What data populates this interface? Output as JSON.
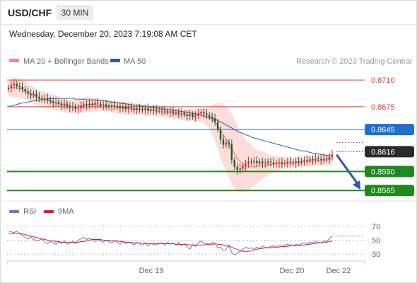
{
  "header": {
    "symbol": "USD/CHF",
    "timeframe": "30 MIN",
    "datetime": "Wednesday, December 20, 2023 7:19:08 AM CET"
  },
  "legend": {
    "items": [
      {
        "label": "MA 20 + Bollinger Bands",
        "color": "#f28b82"
      },
      {
        "label": "MA 50",
        "color": "#2f5b94"
      }
    ],
    "copyright": "Research © 2023 Trading Central"
  },
  "rsi_legend": {
    "items": [
      {
        "label": "RSI",
        "color": "#5b7fd6"
      },
      {
        "label": "9MA",
        "color": "#e02020"
      }
    ]
  },
  "colors": {
    "up": "#c62828",
    "down": "#1b5e20",
    "ma20": "#e57373",
    "band": "#ffd6d6",
    "ma50": "#3d5f91",
    "support": "#1e8a1e",
    "resistance": "#e53935",
    "pivot": "#1f6fd1",
    "current": "#2b2b2b",
    "arrow": "#2a5aa8"
  },
  "chart_data": [
    {
      "type": "candlestick",
      "title": "USD/CHF 30 MIN",
      "ylim": [
        0.8555,
        0.8725
      ],
      "x_ticks": [
        "Dec 19",
        "Dec 20",
        "Dec 22"
      ],
      "series": [
        {
          "name": "USD/CHF",
          "close": [
            0.87,
            0.8703,
            0.8705,
            0.8702,
            0.8701,
            0.8698,
            0.8695,
            0.8692,
            0.869,
            0.8692,
            0.8688,
            0.8686,
            0.8685,
            0.8686,
            0.8684,
            0.8682,
            0.868,
            0.8681,
            0.8679,
            0.8677,
            0.8679,
            0.8676,
            0.8674,
            0.8675,
            0.8672,
            0.8673,
            0.8676,
            0.8678,
            0.8677,
            0.8679,
            0.8678,
            0.868,
            0.8679,
            0.8677,
            0.8678,
            0.8676,
            0.8675,
            0.8677,
            0.8676,
            0.8675,
            0.8673,
            0.8675,
            0.8672,
            0.8674,
            0.8673,
            0.8671,
            0.8673,
            0.8672,
            0.8671,
            0.8673,
            0.867,
            0.8672,
            0.8671,
            0.867,
            0.8671,
            0.867,
            0.8669,
            0.8668,
            0.8669,
            0.8667,
            0.8668,
            0.8666,
            0.8667,
            0.8665,
            0.8663,
            0.8665,
            0.8662,
            0.8664,
            0.8666,
            0.8668,
            0.8666,
            0.8664,
            0.8662,
            0.866,
            0.8655,
            0.8645,
            0.8632,
            0.8625,
            0.8628,
            0.8626,
            0.8605,
            0.8596,
            0.8592,
            0.8594,
            0.8597,
            0.86,
            0.8603,
            0.8602,
            0.8604,
            0.8601,
            0.8603,
            0.86,
            0.8601,
            0.8603,
            0.8602,
            0.86,
            0.8601,
            0.8602,
            0.86,
            0.8601,
            0.8603,
            0.8602,
            0.8601,
            0.8603,
            0.8602,
            0.8604,
            0.8605,
            0.8604,
            0.8606,
            0.8605,
            0.8607,
            0.8606,
            0.8605,
            0.8607,
            0.8606,
            0.8609,
            0.8612
          ]
        },
        {
          "name": "MA 20",
          "values": [
            0.8699,
            0.87,
            0.87,
            0.87,
            0.8699,
            0.8698,
            0.8696,
            0.8694,
            0.8692,
            0.869,
            0.8688,
            0.8686,
            0.8685,
            0.8684,
            0.8683,
            0.8682,
            0.8681,
            0.868,
            0.8679,
            0.8678,
            0.8677,
            0.8676,
            0.8675,
            0.8675,
            0.8675,
            0.8675,
            0.8676,
            0.8677,
            0.8678,
            0.8678,
            0.8678,
            0.8678,
            0.8677,
            0.8677,
            0.8677,
            0.8676,
            0.8676,
            0.8675,
            0.8675,
            0.8674,
            0.8674,
            0.8673,
            0.8673,
            0.8673,
            0.8672,
            0.8672,
            0.8672,
            0.8671,
            0.8671,
            0.8671,
            0.867,
            0.867,
            0.867,
            0.8669,
            0.8669,
            0.8668,
            0.8668,
            0.8667,
            0.8667,
            0.8666,
            0.8666,
            0.8665,
            0.8665,
            0.8664,
            0.8664,
            0.8664,
            0.8664,
            0.8664,
            0.8664,
            0.8664,
            0.8663,
            0.8662,
            0.866,
            0.8658,
            0.8655,
            0.865,
            0.8644,
            0.8638,
            0.8632,
            0.8627,
            0.862,
            0.8613,
            0.8607,
            0.8603,
            0.86,
            0.8598,
            0.8597,
            0.8596,
            0.8596,
            0.8596,
            0.8597,
            0.8598,
            0.8598,
            0.8599,
            0.8599,
            0.86,
            0.86,
            0.8601,
            0.8601,
            0.8601,
            0.8601,
            0.8601,
            0.8601,
            0.8602,
            0.8602,
            0.8602,
            0.8603,
            0.8603,
            0.8603,
            0.8604,
            0.8604,
            0.8604,
            0.8605,
            0.8605,
            0.8605,
            0.8606,
            0.8607
          ]
        },
        {
          "name": "MA 50",
          "values": [
            0.8675,
            0.8676,
            0.8677,
            0.8678,
            0.8679,
            0.868,
            0.868,
            0.8681,
            0.8682,
            0.8683,
            0.8683,
            0.8684,
            0.8684,
            0.8685,
            0.8685,
            0.8686,
            0.8686,
            0.8686,
            0.8686,
            0.8686,
            0.8686,
            0.8686,
            0.8686,
            0.8686,
            0.8685,
            0.8685,
            0.8685,
            0.8685,
            0.8684,
            0.8684,
            0.8684,
            0.8684,
            0.8683,
            0.8683,
            0.8683,
            0.8682,
            0.8682,
            0.8681,
            0.8681,
            0.868,
            0.868,
            0.8679,
            0.8679,
            0.8678,
            0.8678,
            0.8677,
            0.8677,
            0.8676,
            0.8676,
            0.8675,
            0.8675,
            0.8674,
            0.8674,
            0.8673,
            0.8673,
            0.8672,
            0.8672,
            0.8671,
            0.8671,
            0.867,
            0.867,
            0.8669,
            0.8669,
            0.8668,
            0.8668,
            0.8667,
            0.8666,
            0.8666,
            0.8665,
            0.8664,
            0.8663,
            0.8662,
            0.8661,
            0.866,
            0.8658,
            0.8657,
            0.8655,
            0.8653,
            0.8651,
            0.8649,
            0.8647,
            0.8645,
            0.8643,
            0.8641,
            0.864,
            0.8638,
            0.8637,
            0.8635,
            0.8634,
            0.8633,
            0.8632,
            0.8631,
            0.863,
            0.8629,
            0.8628,
            0.8627,
            0.8626,
            0.8625,
            0.8624,
            0.8623,
            0.8622,
            0.8621,
            0.862,
            0.8619,
            0.8618,
            0.8617,
            0.8617,
            0.8616,
            0.8615,
            0.8614,
            0.8614,
            0.8613,
            0.8612,
            0.8612,
            0.8611,
            0.8611,
            0.861
          ]
        }
      ],
      "bollinger": {
        "width": [
          0.001,
          0.0012,
          0.0013,
          0.0013,
          0.0013,
          0.0012,
          0.0012,
          0.0011,
          0.0011,
          0.0011,
          0.001,
          0.001,
          0.001,
          0.001,
          0.001,
          0.001,
          0.001,
          0.001,
          0.0009,
          0.0009,
          0.0009,
          0.0009,
          0.0009,
          0.0009,
          0.0009,
          0.0009,
          0.001,
          0.001,
          0.001,
          0.001,
          0.0009,
          0.0009,
          0.0008,
          0.0008,
          0.0008,
          0.0008,
          0.0008,
          0.0008,
          0.0008,
          0.0008,
          0.0008,
          0.0008,
          0.0008,
          0.0008,
          0.0008,
          0.0008,
          0.0007,
          0.0007,
          0.0007,
          0.0007,
          0.0007,
          0.0007,
          0.0007,
          0.0007,
          0.0007,
          0.0007,
          0.0007,
          0.0007,
          0.0007,
          0.0007,
          0.0007,
          0.0007,
          0.0007,
          0.0007,
          0.0008,
          0.0008,
          0.0008,
          0.0008,
          0.0008,
          0.0009,
          0.001,
          0.0012,
          0.0015,
          0.0019,
          0.0024,
          0.003,
          0.0036,
          0.004,
          0.0043,
          0.0045,
          0.0046,
          0.0045,
          0.0043,
          0.004,
          0.0037,
          0.0034,
          0.0031,
          0.0028,
          0.0025,
          0.0022,
          0.002,
          0.0018,
          0.0016,
          0.0014,
          0.0012,
          0.0011,
          0.001,
          0.0009,
          0.0008,
          0.0008,
          0.0007,
          0.0007,
          0.0007,
          0.0007,
          0.0007,
          0.0007,
          0.0007,
          0.0007,
          0.0007,
          0.0007,
          0.0007,
          0.0007,
          0.0007,
          0.0007,
          0.0007,
          0.0007,
          0.0007
        ]
      },
      "levels": [
        {
          "label": "0.8710",
          "kind": "resistance",
          "value": 0.871
        },
        {
          "label": "0.8675",
          "kind": "resistance",
          "value": 0.8675
        },
        {
          "label": "0.8645",
          "kind": "pivot",
          "value": 0.8645
        },
        {
          "label": "0.8616",
          "kind": "current",
          "value": 0.8616
        },
        {
          "label": "0.8590",
          "kind": "support",
          "value": 0.859
        },
        {
          "label": "0.8565",
          "kind": "support",
          "value": 0.8565
        }
      ],
      "arrow": {
        "from": 0.8611,
        "to": 0.8566,
        "direction": "down"
      }
    },
    {
      "type": "line",
      "title": "RSI",
      "ylim": [
        20,
        80
      ],
      "y_ticks": [
        "70",
        "50",
        "30"
      ],
      "y_values": [
        70,
        50,
        30
      ],
      "series": [
        {
          "name": "RSI",
          "values": [
            63,
            62,
            61,
            63,
            59,
            57,
            54,
            52,
            55,
            51,
            49,
            50,
            52,
            47,
            45,
            48,
            46,
            44,
            47,
            45,
            49,
            44,
            46,
            48,
            45,
            50,
            52,
            54,
            51,
            53,
            50,
            48,
            51,
            49,
            47,
            50,
            48,
            46,
            49,
            47,
            44,
            48,
            45,
            47,
            46,
            43,
            47,
            45,
            43,
            46,
            42,
            45,
            44,
            43,
            45,
            46,
            43,
            47,
            44,
            46,
            43,
            47,
            42,
            45,
            40,
            37,
            44,
            41,
            46,
            49,
            45,
            46,
            44,
            47,
            45,
            39,
            40,
            35,
            37,
            43,
            32,
            29,
            31,
            34,
            37,
            40,
            38,
            39,
            37,
            40,
            38,
            41,
            40,
            39,
            41,
            42,
            40,
            43,
            41,
            43,
            44,
            43,
            42,
            44,
            43,
            45,
            46,
            45,
            47,
            46,
            48,
            47,
            46,
            49,
            48,
            52,
            56
          ]
        },
        {
          "name": "9MA",
          "values": [
            60,
            60,
            60,
            60,
            60,
            59,
            58,
            57,
            56,
            55,
            54,
            53,
            52,
            51,
            50,
            49,
            49,
            48,
            48,
            47,
            47,
            47,
            47,
            47,
            47,
            47,
            48,
            48,
            49,
            50,
            51,
            51,
            51,
            51,
            50,
            50,
            50,
            49,
            49,
            49,
            48,
            48,
            47,
            47,
            47,
            46,
            46,
            46,
            46,
            45,
            45,
            45,
            45,
            45,
            45,
            45,
            45,
            45,
            45,
            45,
            44,
            44,
            44,
            44,
            44,
            43,
            43,
            43,
            43,
            43,
            43,
            44,
            44,
            44,
            45,
            44,
            44,
            43,
            42,
            41,
            40,
            38,
            37,
            35,
            34,
            34,
            34,
            35,
            36,
            37,
            38,
            38,
            39,
            39,
            39,
            40,
            40,
            40,
            41,
            41,
            41,
            42,
            42,
            42,
            42,
            43,
            43,
            44,
            44,
            45,
            45,
            46,
            46,
            47,
            47,
            48,
            49
          ]
        }
      ]
    }
  ]
}
